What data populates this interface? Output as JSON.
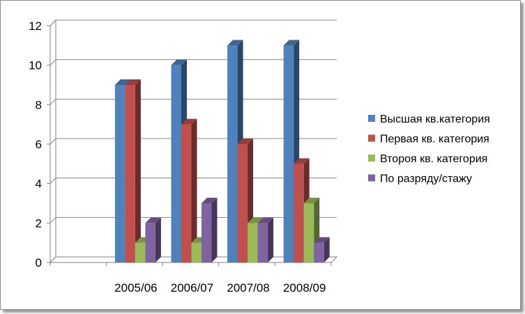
{
  "chart_data": {
    "type": "bar",
    "categories": [
      "",
      "2005/06",
      "2006/07",
      "2007/08",
      "2008/09"
    ],
    "series": [
      {
        "name": "Высшая кв.категория",
        "color": "#4f81bd",
        "values": [
          null,
          9,
          10,
          11,
          11
        ]
      },
      {
        "name": "Первая кв. категория",
        "color": "#c0504d",
        "values": [
          null,
          9,
          7,
          6,
          5
        ]
      },
      {
        "name": "Второя кв. категория",
        "color": "#9bbb59",
        "values": [
          null,
          1,
          1,
          2,
          3
        ]
      },
      {
        "name": "По разряду/стажу",
        "color": "#8064a2",
        "values": [
          null,
          2,
          3,
          2,
          1
        ]
      }
    ],
    "ylim": [
      0,
      12
    ],
    "yticks": [
      "0",
      "2",
      "4",
      "6",
      "8",
      "10",
      "12"
    ],
    "grid": true,
    "legend": "right",
    "style": "3d-clustered-column"
  }
}
